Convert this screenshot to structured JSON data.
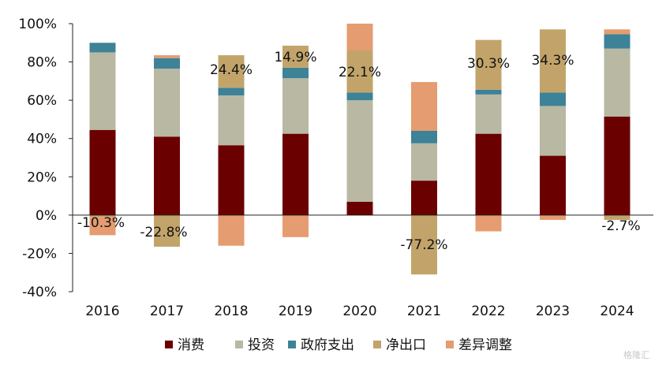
{
  "chart_data": {
    "type": "bar",
    "stacked": true,
    "categories": [
      "2016",
      "2017",
      "2018",
      "2019",
      "2020",
      "2021",
      "2022",
      "2023",
      "2024"
    ],
    "series": [
      {
        "name": "消费",
        "color": "#6b0000",
        "values": [
          44.5,
          41,
          36.5,
          42.5,
          7,
          18,
          42.5,
          31,
          51.5
        ]
      },
      {
        "name": "投资",
        "color": "#b8b8a3",
        "values": [
          40.5,
          35.5,
          26,
          29,
          53,
          19.5,
          20.5,
          26,
          35.5
        ]
      },
      {
        "name": "政府支出",
        "color": "#3d8297",
        "values": [
          5,
          5.5,
          4,
          5.5,
          4,
          6.5,
          2.5,
          7,
          7.5
        ]
      },
      {
        "name": "净出口",
        "color": "#c2a46a",
        "values": [
          -1,
          -16.5,
          17,
          11.5,
          22,
          -31,
          26,
          33,
          -2.5
        ]
      },
      {
        "name": "差异调整",
        "color": "#e59c70",
        "values": [
          -9.5,
          1.5,
          -16,
          -11.5,
          14,
          25.5,
          -8.5,
          -2.5,
          2.5
        ]
      }
    ],
    "bar_labels": [
      "-10.3%",
      "-22.8%",
      "24.4%",
      "14.9%",
      "22.1%",
      "-77.2%",
      "30.3%",
      "34.3%",
      "-2.7%"
    ],
    "ylim": [
      -40,
      100
    ],
    "yticks": [
      "100%",
      "80%",
      "60%",
      "40%",
      "20%",
      "0%",
      "-20%",
      "-40%"
    ],
    "grid": false,
    "legend": "bottom"
  },
  "watermark": "格隆汇"
}
